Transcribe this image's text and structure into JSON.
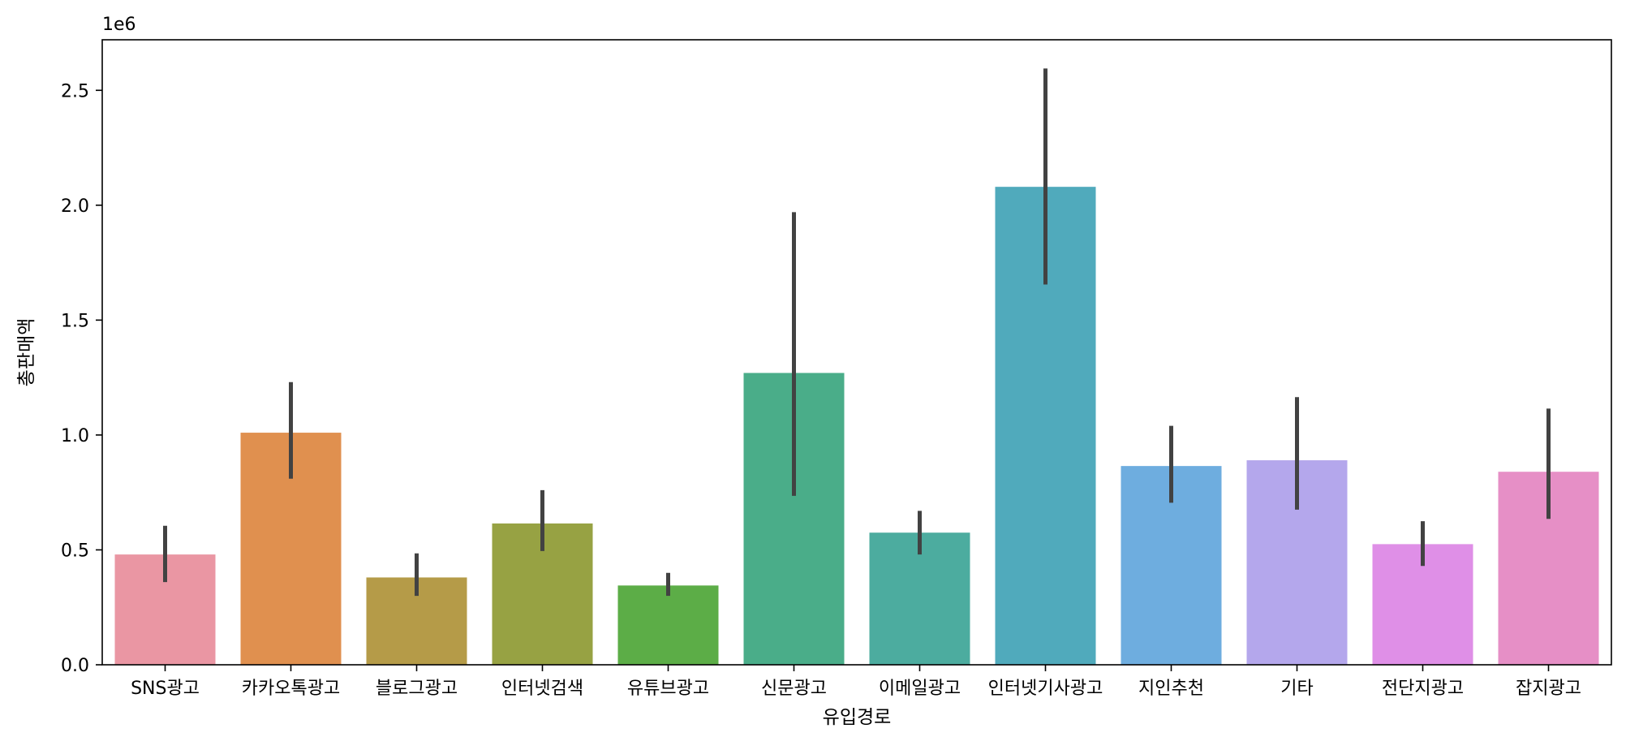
{
  "chart_data": {
    "type": "bar",
    "title": "",
    "xlabel": "유입경로",
    "ylabel": "총판매액",
    "y_offset_label": "1e6",
    "ylim": [
      0,
      2.72
    ],
    "yticks": [
      0.0,
      0.5,
      1.0,
      1.5,
      2.0,
      2.5
    ],
    "ytick_labels": [
      "0.0",
      "0.5",
      "1.0",
      "1.5",
      "2.0",
      "2.5"
    ],
    "y_unit_multiplier": 1000000,
    "categories": [
      "SNS광고",
      "카카오톡광고",
      "블로그광고",
      "인터넷검색",
      "유튜브광고",
      "신문광고",
      "이메일광고",
      "인터넷기사광고",
      "지인추천",
      "기타",
      "전단지광고",
      "잡지광고"
    ],
    "values": [
      0.48,
      1.01,
      0.38,
      0.615,
      0.345,
      1.27,
      0.575,
      2.08,
      0.865,
      0.89,
      0.525,
      0.84
    ],
    "error_low": [
      0.36,
      0.81,
      0.3,
      0.495,
      0.3,
      0.735,
      0.48,
      1.655,
      0.705,
      0.675,
      0.43,
      0.635
    ],
    "error_high": [
      0.605,
      1.23,
      0.485,
      0.76,
      0.4,
      1.97,
      0.67,
      2.595,
      1.04,
      1.165,
      0.625,
      1.115
    ],
    "colors": [
      "#ea96a3",
      "#e0904f",
      "#b59b48",
      "#97a243",
      "#5cad47",
      "#4aad89",
      "#4cac9f",
      "#50aabc",
      "#6eaddf",
      "#b4a7ec",
      "#df8fe7",
      "#e68fc6"
    ],
    "error_bar_color": "#424242",
    "grid": false,
    "legend": "none"
  }
}
